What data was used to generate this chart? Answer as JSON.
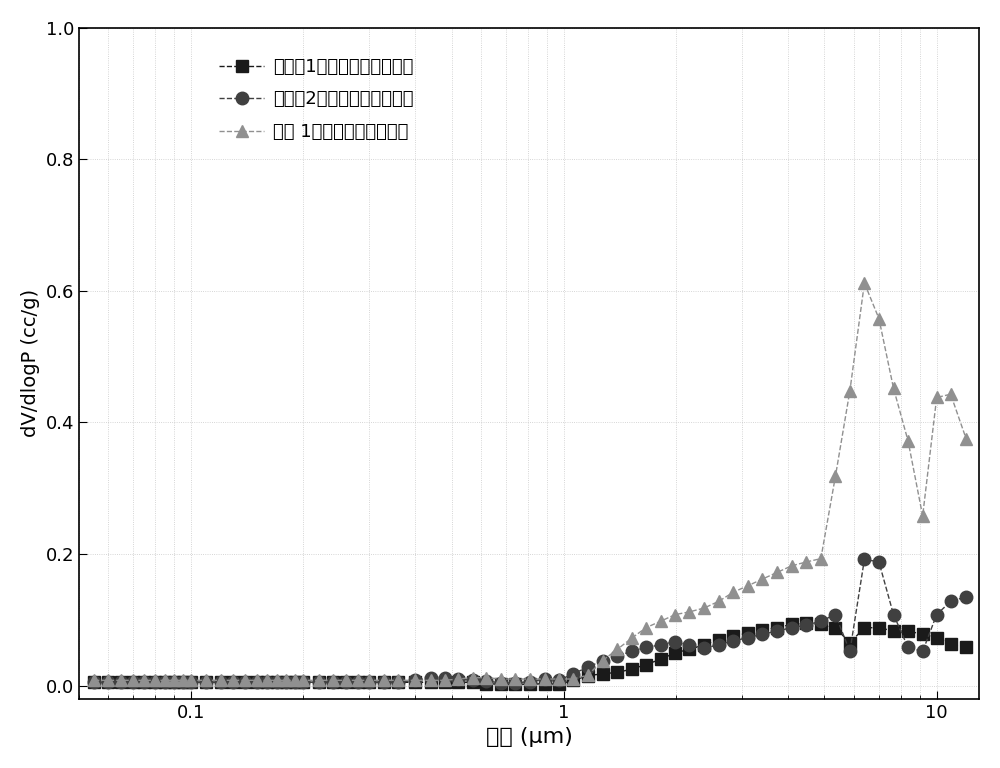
{
  "xlabel": "孔径 (μm)",
  "ylabel": "dV/dlogP (cc/g)",
  "xlim": [
    0.05,
    13
  ],
  "ylim": [
    -0.02,
    1.0
  ],
  "yticks": [
    0.0,
    0.2,
    0.4,
    0.6,
    0.8,
    1.0
  ],
  "legend_labels": [
    "对比例1制备的浆液的傅化层",
    "对比例2制备的浆液的傅化层",
    "浆液 1制备的浆液的傅化层"
  ],
  "series1_color": "#1a1a1a",
  "series2_color": "#404040",
  "series3_color": "#909090",
  "series1_x": [
    0.055,
    0.06,
    0.065,
    0.07,
    0.075,
    0.08,
    0.085,
    0.09,
    0.095,
    0.1,
    0.11,
    0.12,
    0.13,
    0.14,
    0.15,
    0.16,
    0.17,
    0.18,
    0.19,
    0.2,
    0.22,
    0.24,
    0.26,
    0.28,
    0.3,
    0.33,
    0.36,
    0.4,
    0.44,
    0.48,
    0.52,
    0.57,
    0.62,
    0.68,
    0.74,
    0.81,
    0.89,
    0.97,
    1.06,
    1.16,
    1.27,
    1.39,
    1.52,
    1.66,
    1.82,
    1.99,
    2.17,
    2.38,
    2.6,
    2.85,
    3.12,
    3.41,
    3.73,
    4.08,
    4.47,
    4.89,
    5.35,
    5.85,
    6.4,
    7.0,
    7.66,
    8.38,
    9.17,
    10.0,
    10.9,
    12.0
  ],
  "series1_y": [
    0.005,
    0.005,
    0.005,
    0.005,
    0.005,
    0.005,
    0.005,
    0.005,
    0.005,
    0.005,
    0.005,
    0.005,
    0.005,
    0.005,
    0.005,
    0.005,
    0.005,
    0.005,
    0.005,
    0.005,
    0.005,
    0.005,
    0.005,
    0.005,
    0.005,
    0.005,
    0.005,
    0.005,
    0.005,
    0.005,
    0.005,
    0.005,
    0.003,
    0.002,
    0.002,
    0.002,
    0.003,
    0.002,
    0.008,
    0.015,
    0.018,
    0.02,
    0.025,
    0.032,
    0.04,
    0.05,
    0.055,
    0.062,
    0.07,
    0.075,
    0.08,
    0.085,
    0.088,
    0.093,
    0.095,
    0.093,
    0.088,
    0.065,
    0.088,
    0.088,
    0.083,
    0.083,
    0.078,
    0.073,
    0.063,
    0.058
  ],
  "series2_x": [
    0.055,
    0.06,
    0.065,
    0.07,
    0.075,
    0.08,
    0.085,
    0.09,
    0.095,
    0.1,
    0.11,
    0.12,
    0.13,
    0.14,
    0.15,
    0.16,
    0.17,
    0.18,
    0.19,
    0.2,
    0.22,
    0.24,
    0.26,
    0.28,
    0.3,
    0.33,
    0.36,
    0.4,
    0.44,
    0.48,
    0.52,
    0.57,
    0.62,
    0.68,
    0.74,
    0.81,
    0.89,
    0.97,
    1.06,
    1.16,
    1.27,
    1.39,
    1.52,
    1.66,
    1.82,
    1.99,
    2.17,
    2.38,
    2.6,
    2.85,
    3.12,
    3.41,
    3.73,
    4.08,
    4.47,
    4.89,
    5.35,
    5.85,
    6.4,
    7.0,
    7.66,
    8.38,
    9.17,
    10.0,
    10.9,
    12.0
  ],
  "series2_y": [
    0.005,
    0.005,
    0.005,
    0.005,
    0.005,
    0.005,
    0.005,
    0.005,
    0.005,
    0.005,
    0.005,
    0.005,
    0.005,
    0.005,
    0.005,
    0.005,
    0.005,
    0.005,
    0.005,
    0.005,
    0.005,
    0.005,
    0.005,
    0.005,
    0.005,
    0.005,
    0.005,
    0.008,
    0.012,
    0.012,
    0.01,
    0.008,
    0.007,
    0.004,
    0.004,
    0.006,
    0.01,
    0.008,
    0.018,
    0.028,
    0.038,
    0.045,
    0.052,
    0.058,
    0.062,
    0.067,
    0.062,
    0.057,
    0.062,
    0.068,
    0.073,
    0.078,
    0.083,
    0.088,
    0.092,
    0.098,
    0.108,
    0.052,
    0.192,
    0.188,
    0.108,
    0.058,
    0.052,
    0.108,
    0.128,
    0.135
  ],
  "series3_x": [
    0.055,
    0.06,
    0.065,
    0.07,
    0.075,
    0.08,
    0.085,
    0.09,
    0.095,
    0.1,
    0.11,
    0.12,
    0.13,
    0.14,
    0.15,
    0.16,
    0.17,
    0.18,
    0.19,
    0.2,
    0.22,
    0.24,
    0.26,
    0.28,
    0.3,
    0.33,
    0.36,
    0.4,
    0.44,
    0.48,
    0.52,
    0.57,
    0.62,
    0.68,
    0.74,
    0.81,
    0.89,
    0.97,
    1.06,
    1.16,
    1.27,
    1.39,
    1.52,
    1.66,
    1.82,
    1.99,
    2.17,
    2.38,
    2.6,
    2.85,
    3.12,
    3.41,
    3.73,
    4.08,
    4.47,
    4.89,
    5.35,
    5.85,
    6.4,
    7.0,
    7.66,
    8.38,
    9.17,
    10.0,
    10.9,
    12.0
  ],
  "series3_y": [
    0.008,
    0.008,
    0.008,
    0.008,
    0.008,
    0.008,
    0.008,
    0.008,
    0.008,
    0.008,
    0.008,
    0.008,
    0.008,
    0.008,
    0.008,
    0.008,
    0.008,
    0.008,
    0.008,
    0.008,
    0.008,
    0.008,
    0.008,
    0.008,
    0.008,
    0.008,
    0.008,
    0.008,
    0.008,
    0.008,
    0.01,
    0.012,
    0.012,
    0.01,
    0.01,
    0.01,
    0.01,
    0.01,
    0.01,
    0.016,
    0.038,
    0.055,
    0.072,
    0.088,
    0.098,
    0.108,
    0.112,
    0.118,
    0.128,
    0.142,
    0.152,
    0.162,
    0.172,
    0.182,
    0.188,
    0.193,
    0.318,
    0.448,
    0.612,
    0.558,
    0.452,
    0.372,
    0.258,
    0.438,
    0.443,
    0.375
  ]
}
